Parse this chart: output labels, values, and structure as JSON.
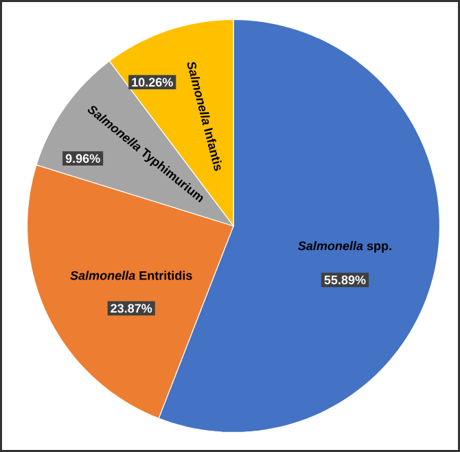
{
  "chart_data": {
    "type": "pie",
    "categories": [
      "*Salmonella* spp.",
      "*Salmonella* Entritidis",
      "*Salmonella* Typhimurium",
      "*Salmonella* Infantis"
    ],
    "values": [
      55.89,
      23.87,
      9.96,
      10.26
    ],
    "colors": [
      "#4472c4",
      "#ed7d31",
      "#a5a5a5",
      "#ffc000"
    ],
    "value_labels": [
      "55.89%",
      "23.87%",
      "9.96%",
      "10.26%"
    ]
  }
}
